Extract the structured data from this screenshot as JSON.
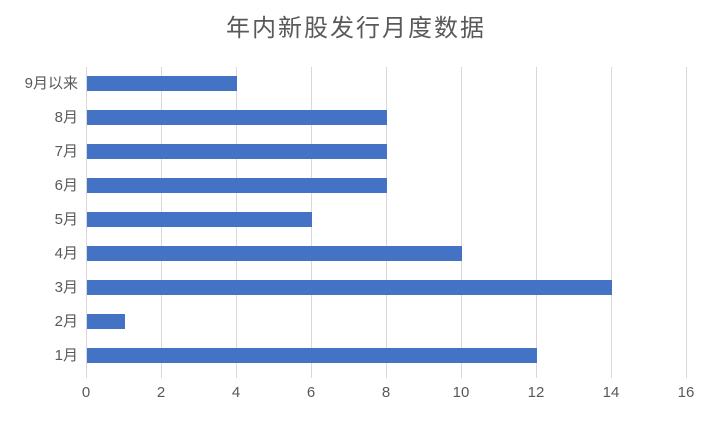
{
  "chart_data": {
    "type": "bar",
    "orientation": "horizontal",
    "title": "年内新股发行月度数据",
    "categories": [
      "9月以来",
      "8月",
      "7月",
      "6月",
      "5月",
      "4月",
      "3月",
      "2月",
      "1月"
    ],
    "values": [
      4,
      8,
      8,
      8,
      6,
      10,
      14,
      1,
      12
    ],
    "xlabel": "",
    "ylabel": "",
    "xlim": [
      0,
      16
    ],
    "x_ticks": [
      0,
      2,
      4,
      6,
      8,
      10,
      12,
      14,
      16
    ],
    "grid": "vertical-only",
    "legend": "none",
    "bar_color": "#4472C4",
    "gridline_color": "#d9d9d9",
    "text_color": "#595959",
    "background_color": "#ffffff"
  }
}
